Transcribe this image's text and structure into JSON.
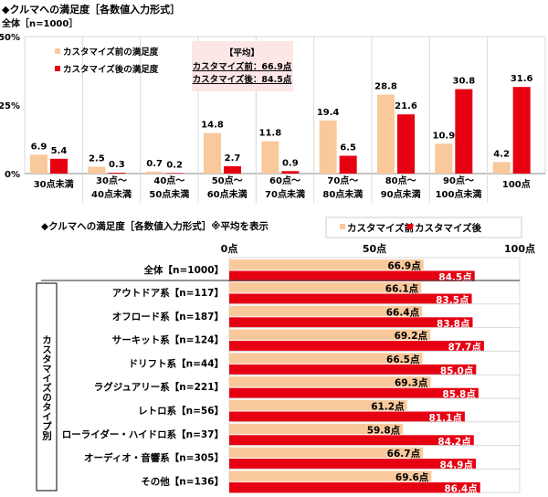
{
  "colors": {
    "before": "#F9C99B",
    "after": "#E60012",
    "avg_box": "#FCE6E6",
    "grid": "#D9D9D9"
  },
  "chart_data": [
    {
      "type": "bar",
      "title": "◆クルマへの満足度［各数値入力形式］",
      "subtitle": "全体［n=1000］",
      "categories": [
        "30点未満",
        "30点～\n40点未満",
        "40点～\n50点未満",
        "50点～\n60点未満",
        "60点～\n70点未満",
        "70点～\n80点未満",
        "80点～\n90点未満",
        "90点～\n100点未満",
        "100点"
      ],
      "series": [
        {
          "name": "カスタマイズ前の満足度",
          "values": [
            6.9,
            2.5,
            0.7,
            14.8,
            11.8,
            19.4,
            28.8,
            10.9,
            4.2
          ]
        },
        {
          "name": "カスタマイズ後の満足度",
          "values": [
            5.4,
            0.3,
            0.2,
            2.7,
            0.9,
            6.5,
            21.6,
            30.8,
            31.6
          ]
        }
      ],
      "ylim": [
        0,
        50
      ],
      "yticks": [
        "0%",
        "25%",
        "50%"
      ],
      "legend": "top-left",
      "annotation": {
        "title": "【平均】",
        "lines": [
          "カスタマイズ前：66.9点",
          "カスタマイズ後：84.5点"
        ]
      }
    },
    {
      "type": "bar",
      "orientation": "horizontal",
      "title": "◆クルマへの満足度［各数値入力形式］※平均を表示",
      "group_label": "カスタマイズのタイプ別",
      "xlim": [
        0,
        100
      ],
      "xticks": [
        "0点",
        "50点",
        "100点"
      ],
      "legend": "top-right",
      "categories": [
        "全体【n=1000】",
        "アウトドア系【n=117】",
        "オフロード系【n=187】",
        "サーキット系【n=124】",
        "ドリフト系【n=44】",
        "ラグジュアリー系【n=221】",
        "レトロ系【n=56】",
        "ローライダー・ハイドロ系【n=37】",
        "オーディオ・音響系【n=305】",
        "その他【n=136】"
      ],
      "series": [
        {
          "name": "カスタマイズ前",
          "values": [
            66.9,
            66.1,
            66.4,
            69.2,
            66.5,
            69.3,
            61.2,
            59.8,
            66.7,
            69.6
          ]
        },
        {
          "name": "カスタマイズ後",
          "values": [
            84.5,
            83.5,
            83.8,
            87.7,
            85.0,
            85.8,
            81.1,
            84.2,
            84.9,
            86.4
          ]
        }
      ],
      "unit": "点"
    }
  ]
}
